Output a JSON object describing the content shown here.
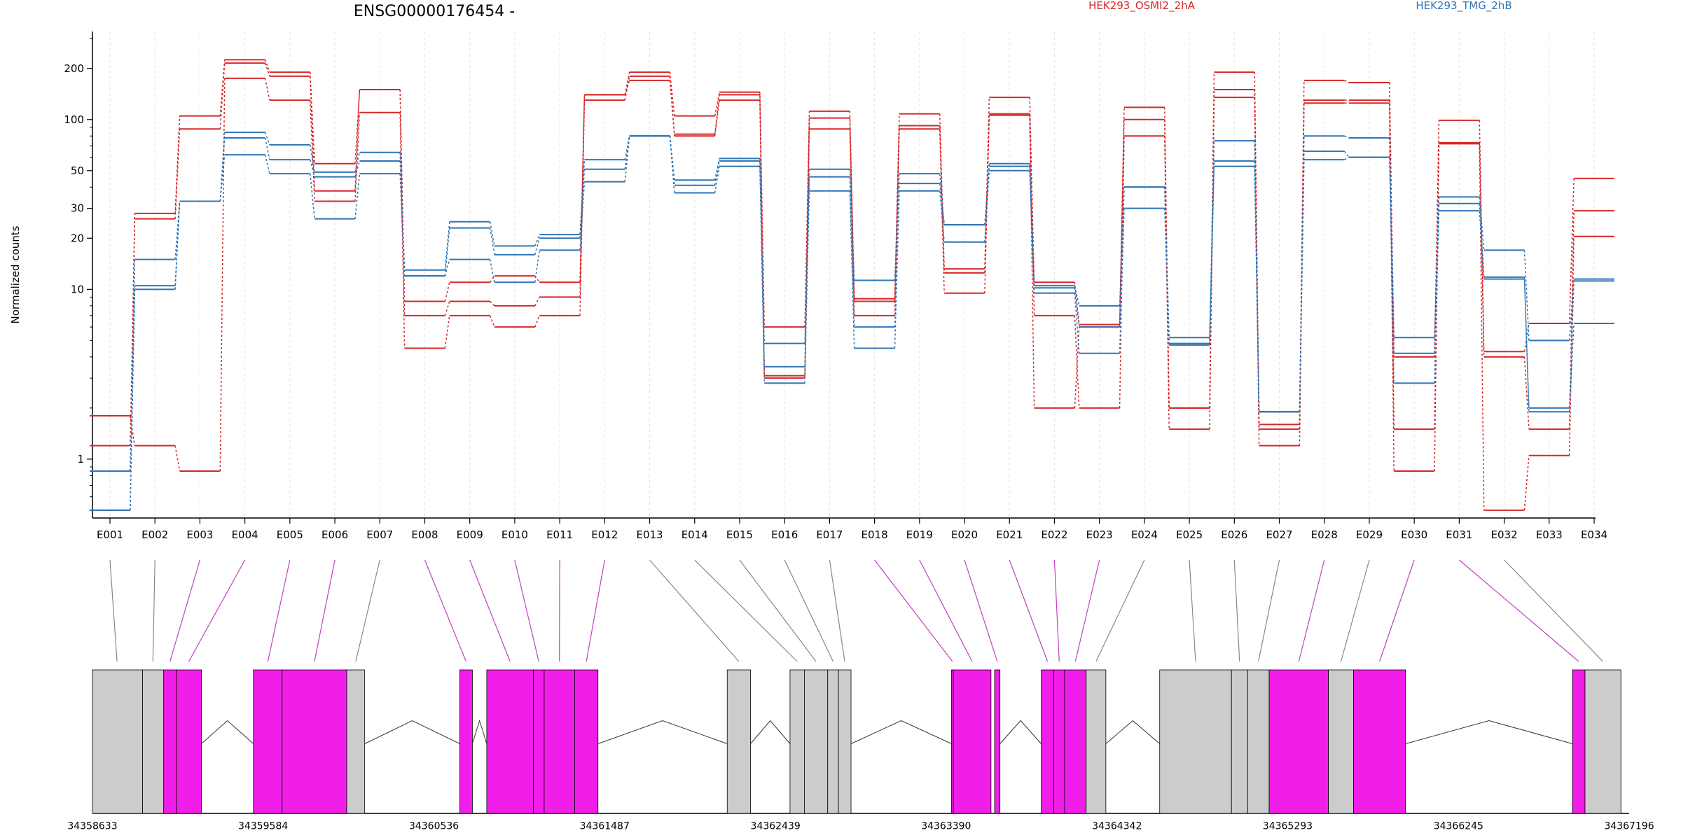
{
  "chart_data": {
    "type": "line",
    "title": "ENSG00000176454 -",
    "ylabel": "Normalized counts",
    "y_scale": "log",
    "ylim": [
      0.45,
      330
    ],
    "y_ticks": [
      1,
      10,
      20,
      30,
      50,
      100,
      200
    ],
    "grid": "vertical dashed at exons",
    "legend_placement": "top",
    "legend": [
      {
        "label": "HEK293_OSMI2_2hA",
        "color": "#d62728"
      },
      {
        "label": "HEK293_TMG_2hB",
        "color": "#2e75b6"
      }
    ],
    "categories": [
      "E001",
      "E002",
      "E003",
      "E004",
      "E005",
      "E006",
      "E007",
      "E008",
      "E009",
      "E010",
      "E011",
      "E012",
      "E013",
      "E014",
      "E015",
      "E016",
      "E017",
      "E018",
      "E019",
      "E020",
      "E021",
      "E022",
      "E023",
      "E024",
      "E025",
      "E026",
      "E027",
      "E028",
      "E029",
      "E030",
      "E031",
      "E032",
      "E033",
      "E034"
    ],
    "series": [
      {
        "group": "HEK293_OSMI2_2hA",
        "color": "#d62728",
        "values": [
          1.8,
          1.2,
          0.85,
          175,
          130,
          33,
          110,
          4.5,
          7,
          6,
          7,
          130,
          180,
          80,
          130,
          3,
          88,
          7,
          88,
          9.5,
          106,
          7,
          2,
          80,
          1.5,
          135,
          1.2,
          125,
          125,
          0.85,
          72,
          0.5,
          1.05,
          20.5
        ]
      },
      {
        "group": "HEK293_OSMI2_2hA",
        "color": "#d62728",
        "values": [
          1.2,
          26,
          88,
          215,
          180,
          38,
          150,
          7,
          8.5,
          8,
          9,
          140,
          170,
          82,
          140,
          3.1,
          102,
          8.5,
          92,
          12.5,
          108,
          2,
          6,
          100,
          2,
          150,
          1.5,
          130,
          130,
          1.5,
          73,
          4,
          1.5,
          29
        ]
      },
      {
        "group": "HEK293_OSMI2_2hA",
        "color": "#d62728",
        "values": [
          0.85,
          28,
          105,
          225,
          190,
          55,
          150,
          8.5,
          11,
          12,
          11,
          140,
          190,
          105,
          145,
          6,
          112,
          8.8,
          108,
          13.2,
          135,
          11,
          6.2,
          118,
          2,
          190,
          1.6,
          170,
          165,
          4,
          99,
          4.3,
          6.3,
          45
        ]
      },
      {
        "group": "HEK293_TMG_2hB",
        "color": "#2e75b6",
        "values": [
          0.5,
          10,
          33,
          62,
          48,
          26,
          48,
          12,
          15,
          11,
          17,
          43,
          80,
          37,
          53,
          3.5,
          38,
          4.5,
          38,
          19,
          50,
          9.5,
          4.2,
          30,
          4.8,
          53,
          1.9,
          58,
          60,
          4.2,
          29,
          11.5,
          1.9,
          6.3
        ]
      },
      {
        "group": "HEK293_TMG_2hB",
        "color": "#2e75b6",
        "values": [
          0.5,
          15,
          33,
          78,
          58,
          46,
          57,
          12,
          23,
          16,
          20,
          51,
          80,
          41,
          57,
          2.8,
          46,
          6,
          42,
          24,
          53,
          10.2,
          6,
          40,
          4.7,
          57,
          1.9,
          65,
          60,
          2.8,
          32,
          11.8,
          2,
          11.2
        ]
      },
      {
        "group": "HEK293_TMG_2hB",
        "color": "#2e75b6",
        "values": [
          0.85,
          10.5,
          33,
          84,
          71,
          49,
          64,
          13,
          25,
          18,
          21,
          58,
          80,
          44,
          59,
          4.8,
          51,
          11.3,
          48,
          24,
          55,
          10.5,
          8,
          40,
          5.2,
          75,
          1.9,
          80,
          78,
          5.2,
          35,
          17,
          5,
          11.5
        ]
      }
    ],
    "gene_model": {
      "coordinate_labels": [
        "34358633",
        "34359584",
        "34360536",
        "34361487",
        "34362439",
        "34363390",
        "34364342",
        "34365293",
        "34366245",
        "34367196"
      ],
      "exon_blocks": [
        {
          "start": 34358633,
          "end": 34358912,
          "color": "#cccccc"
        },
        {
          "start": 34358912,
          "end": 34359030,
          "color": "#cccccc"
        },
        {
          "start": 34359030,
          "end": 34359100,
          "color": "#f01ee8"
        },
        {
          "start": 34359100,
          "end": 34359240,
          "color": "#f01ee8"
        },
        {
          "start": 34359530,
          "end": 34359690,
          "color": "#f01ee8"
        },
        {
          "start": 34359690,
          "end": 34360050,
          "color": "#f01ee8"
        },
        {
          "start": 34360050,
          "end": 34360150,
          "color": "#cccccc"
        },
        {
          "start": 34360680,
          "end": 34360750,
          "color": "#f01ee8"
        },
        {
          "start": 34360830,
          "end": 34361090,
          "color": "#f01ee8"
        },
        {
          "start": 34361090,
          "end": 34361150,
          "color": "#f01ee8"
        },
        {
          "start": 34361150,
          "end": 34361320,
          "color": "#f01ee8"
        },
        {
          "start": 34361320,
          "end": 34361450,
          "color": "#f01ee8"
        },
        {
          "start": 34362170,
          "end": 34362300,
          "color": "#cccccc"
        },
        {
          "start": 34362520,
          "end": 34362600,
          "color": "#cccccc"
        },
        {
          "start": 34362600,
          "end": 34362730,
          "color": "#cccccc"
        },
        {
          "start": 34362730,
          "end": 34362790,
          "color": "#cccccc"
        },
        {
          "start": 34362790,
          "end": 34362860,
          "color": "#cccccc"
        },
        {
          "start": 34363420,
          "end": 34363430,
          "color": "#f01ee8"
        },
        {
          "start": 34363430,
          "end": 34363640,
          "color": "#f01ee8"
        },
        {
          "start": 34363660,
          "end": 34363690,
          "color": "#f01ee8"
        },
        {
          "start": 34363920,
          "end": 34363990,
          "color": "#f01ee8"
        },
        {
          "start": 34363990,
          "end": 34364050,
          "color": "#f01ee8"
        },
        {
          "start": 34364050,
          "end": 34364170,
          "color": "#f01ee8"
        },
        {
          "start": 34364170,
          "end": 34364280,
          "color": "#cccccc"
        },
        {
          "start": 34364580,
          "end": 34364980,
          "color": "#cccccc"
        },
        {
          "start": 34364980,
          "end": 34365070,
          "color": "#cccccc"
        },
        {
          "start": 34365070,
          "end": 34365190,
          "color": "#cccccc"
        },
        {
          "start": 34365190,
          "end": 34365520,
          "color": "#f01ee8"
        },
        {
          "start": 34365520,
          "end": 34365660,
          "color": "#cccccc"
        },
        {
          "start": 34365660,
          "end": 34365950,
          "color": "#f01ee8"
        },
        {
          "start": 34366880,
          "end": 34366950,
          "color": "#f01ee8"
        },
        {
          "start": 34366950,
          "end": 34367150,
          "color": "#cccccc"
        }
      ],
      "introns": [
        [
          34359240,
          34359530
        ],
        [
          34360150,
          34360680
        ],
        [
          34360750,
          34360830
        ],
        [
          34361450,
          34362170
        ],
        [
          34362300,
          34362520
        ],
        [
          34362860,
          34363420
        ],
        [
          34363690,
          34363920
        ],
        [
          34364280,
          34364580
        ],
        [
          34365950,
          34366880
        ]
      ],
      "exon_connectors": [
        34358770,
        34358970,
        34359065,
        34359170,
        34359610,
        34359870,
        34360100,
        34360715,
        34360960,
        34361120,
        34361235,
        34361385,
        34362235,
        34362560,
        34362665,
        34362760,
        34362825,
        34363425,
        34363535,
        34363675,
        34363955,
        34364020,
        34364110,
        34364225,
        34364780,
        34365025,
        34365130,
        34365355,
        34365590,
        34365805,
        34366915,
        34367050
      ]
    }
  }
}
